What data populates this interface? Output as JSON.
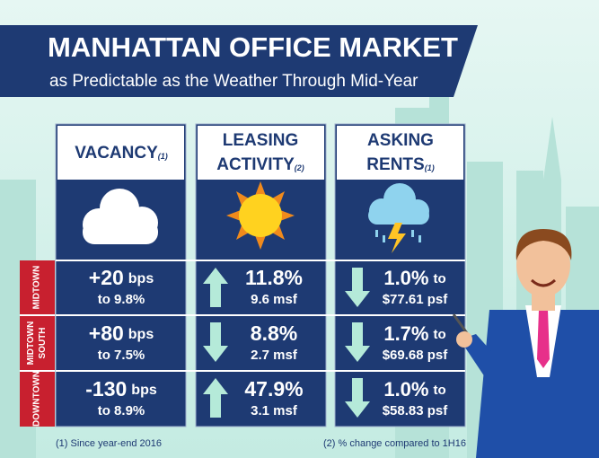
{
  "header": {
    "title": "MANHATTAN OFFICE MARKET",
    "subtitle": "as Predictable as the Weather Through Mid-Year"
  },
  "columns": [
    {
      "lines": [
        "VACANCY"
      ],
      "note": "(1)"
    },
    {
      "lines": [
        "LEASING",
        "ACTIVITY"
      ],
      "note": "(2)"
    },
    {
      "lines": [
        "ASKING",
        "RENTS"
      ],
      "note": "(1)"
    }
  ],
  "rows": [
    {
      "lines": [
        "MIDTOWN"
      ],
      "vacancy": {
        "change": "+20",
        "unit": "bps",
        "level": "to 9.8%"
      },
      "leasing": {
        "change": "11.8%",
        "volume": "9.6 msf"
      },
      "rents": {
        "change": "1.0%",
        "to": "to",
        "level": "$77.61 psf"
      }
    },
    {
      "lines": [
        "MIDTOWN",
        "SOUTH"
      ],
      "vacancy": {
        "change": "+80",
        "unit": "bps",
        "level": "to 7.5%"
      },
      "leasing": {
        "change": "8.8%",
        "volume": "2.7 msf"
      },
      "rents": {
        "change": "1.7%",
        "to": "to",
        "level": "$69.68 psf"
      }
    },
    {
      "lines": [
        "DOWNTOWN"
      ],
      "vacancy": {
        "change": "-130",
        "unit": "bps",
        "level": "to 8.9%"
      },
      "leasing": {
        "change": "47.9%",
        "volume": "3.1 msf"
      },
      "rents": {
        "change": "1.0%",
        "to": "to",
        "level": "$58.83 psf"
      }
    }
  ],
  "footnotes": [
    "(1) Since year-end 2016",
    "(2) % change compared to 1H16"
  ]
}
